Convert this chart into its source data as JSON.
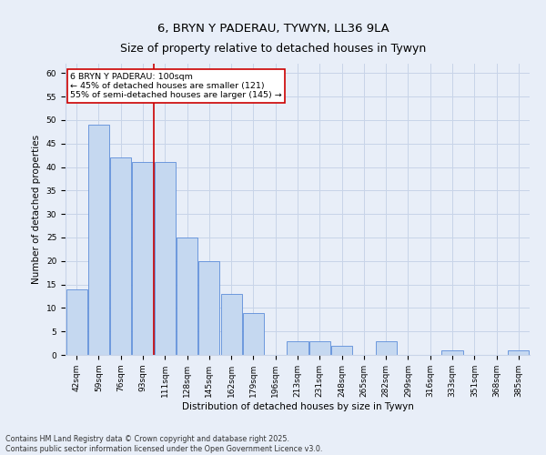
{
  "title": "6, BRYN Y PADERAU, TYWYN, LL36 9LA",
  "subtitle": "Size of property relative to detached houses in Tywyn",
  "xlabel": "Distribution of detached houses by size in Tywyn",
  "ylabel": "Number of detached properties",
  "categories": [
    "42sqm",
    "59sqm",
    "76sqm",
    "93sqm",
    "111sqm",
    "128sqm",
    "145sqm",
    "162sqm",
    "179sqm",
    "196sqm",
    "213sqm",
    "231sqm",
    "248sqm",
    "265sqm",
    "282sqm",
    "299sqm",
    "316sqm",
    "333sqm",
    "351sqm",
    "368sqm",
    "385sqm"
  ],
  "values": [
    14,
    49,
    42,
    41,
    41,
    25,
    20,
    13,
    9,
    0,
    3,
    3,
    2,
    0,
    3,
    0,
    0,
    1,
    0,
    0,
    1
  ],
  "bar_color": "#c5d8f0",
  "bar_edge_color": "#5b8dd9",
  "grid_color": "#c8d4e8",
  "background_color": "#e8eef8",
  "vline_x": 3.5,
  "vline_color": "#cc0000",
  "annotation_text": "6 BRYN Y PADERAU: 100sqm\n← 45% of detached houses are smaller (121)\n55% of semi-detached houses are larger (145) →",
  "annotation_box_color": "#ffffff",
  "annotation_box_edge": "#cc0000",
  "ylim": [
    0,
    62
  ],
  "yticks": [
    0,
    5,
    10,
    15,
    20,
    25,
    30,
    35,
    40,
    45,
    50,
    55,
    60
  ],
  "footer": "Contains HM Land Registry data © Crown copyright and database right 2025.\nContains public sector information licensed under the Open Government Licence v3.0.",
  "title_fontsize": 9.5,
  "label_fontsize": 7.5,
  "tick_fontsize": 6.5,
  "footer_fontsize": 5.8,
  "annot_fontsize": 6.8
}
